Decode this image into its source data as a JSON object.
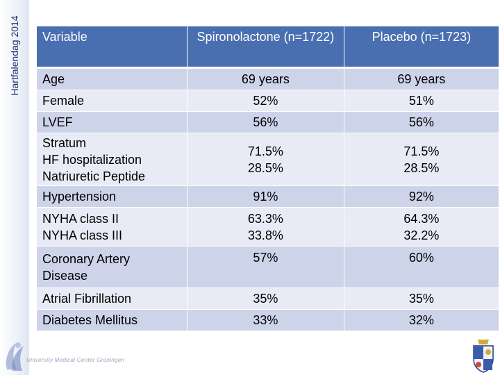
{
  "slide": {
    "vertical_title": "Hartfalendag 2014",
    "footer": "University Medical Center Groningen"
  },
  "table": {
    "headers": [
      "Variable",
      "Spironolactone (n=1722)",
      "Placebo (n=1723)"
    ],
    "rows": [
      {
        "variable": [
          "Age"
        ],
        "spironolactone": [
          "69 years"
        ],
        "placebo": [
          "69 years"
        ]
      },
      {
        "variable": [
          "Female"
        ],
        "spironolactone": [
          "52%"
        ],
        "placebo": [
          "51%"
        ]
      },
      {
        "variable": [
          "LVEF"
        ],
        "spironolactone": [
          "56%"
        ],
        "placebo": [
          "56%"
        ]
      },
      {
        "variable": [
          "Stratum",
          "HF hospitalization",
          "Natriuretic Peptide"
        ],
        "spironolactone": [
          "71.5%",
          "28.5%"
        ],
        "placebo": [
          "71.5%",
          "28.5%"
        ]
      },
      {
        "variable": [
          "Hypertension"
        ],
        "spironolactone": [
          "91%"
        ],
        "placebo": [
          "92%"
        ]
      },
      {
        "variable": [
          "NYHA class II",
          "NYHA class III"
        ],
        "spironolactone": [
          "63.3%",
          "33.8%"
        ],
        "placebo": [
          "64.3%",
          "32.2%"
        ]
      },
      {
        "variable": [
          "Coronary Artery",
          "Disease"
        ],
        "spironolactone": [
          "57%"
        ],
        "placebo": [
          "60%"
        ]
      },
      {
        "variable": [
          "Atrial Fibrillation"
        ],
        "spironolactone": [
          "35%"
        ],
        "placebo": [
          "35%"
        ]
      },
      {
        "variable": [
          "Diabetes Mellitus"
        ],
        "spironolactone": [
          "33%"
        ],
        "placebo": [
          "32%"
        ]
      }
    ]
  },
  "colors": {
    "header_bg": "#4a6fb0",
    "row_odd": "#cdd4ea",
    "row_even": "#e8ebf5"
  }
}
